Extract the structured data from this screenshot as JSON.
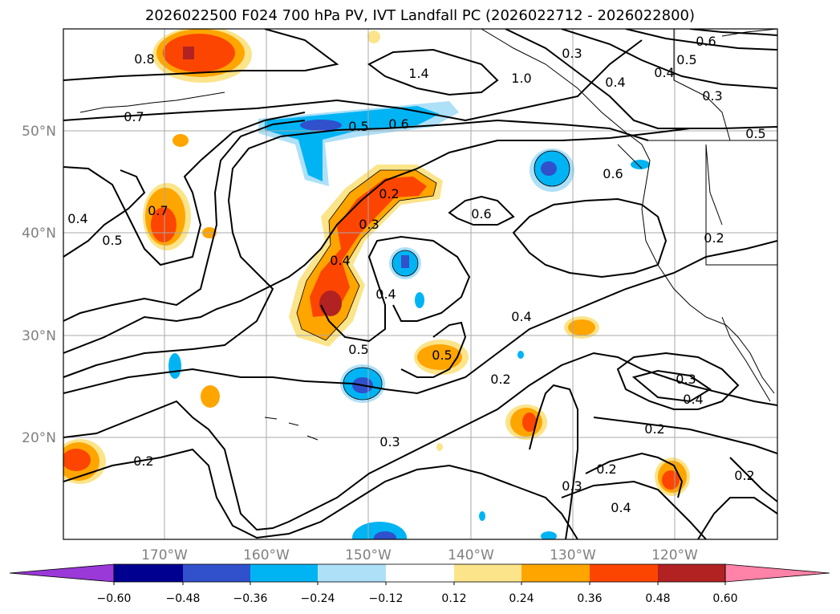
{
  "title": "2026022500 F024 700 hPa PV, IVT Landfall PC (2026022712 - 2026022800)",
  "map": {
    "lon_labels": [
      "170°W",
      "160°W",
      "150°W",
      "140°W",
      "130°W",
      "120°W"
    ],
    "lat_labels": [
      "50°N",
      "40°N",
      "30°N",
      "20°N"
    ],
    "contour_labels": [
      "0.8",
      "1.4",
      "0.3",
      "0.6",
      "0.5",
      "0.4",
      "0.3",
      "0.7",
      "0.5",
      "0.6",
      "1.0",
      "0.4",
      "0.5",
      "0.6",
      "0.2",
      "0.6",
      "0.3",
      "0.4",
      "0.7",
      "0.4",
      "0.5",
      "0.2",
      "0.4",
      "0.5",
      "0.4",
      "0.5",
      "0.2",
      "0.3",
      "0.4",
      "0.3",
      "0.2",
      "0.2",
      "0.2",
      "0.3",
      "0.4",
      "0.2"
    ],
    "colors": {
      "shading": [
        "#9a38d8",
        "#000090",
        "#3050cc",
        "#00b4f4",
        "#aee0f8",
        "#ffffff",
        "#fbe48a",
        "#ffa500",
        "#fc4500",
        "#b22222",
        "#ff82a8"
      ]
    }
  },
  "colorbar": {
    "tick_labels": [
      "−0.60",
      "−0.48",
      "−0.36",
      "−0.24",
      "−0.12",
      "0.12",
      "0.24",
      "0.36",
      "0.48",
      "0.60"
    ],
    "boundaries": [
      -0.6,
      -0.48,
      -0.36,
      -0.24,
      -0.12,
      0.12,
      0.24,
      0.36,
      0.48,
      0.6
    ],
    "colors": [
      "#9a38d8",
      "#000090",
      "#3050cc",
      "#00b4f4",
      "#aee0f8",
      "#ffffff",
      "#fbe48a",
      "#ffa500",
      "#fc4500",
      "#b22222",
      "#ff82a8"
    ]
  }
}
